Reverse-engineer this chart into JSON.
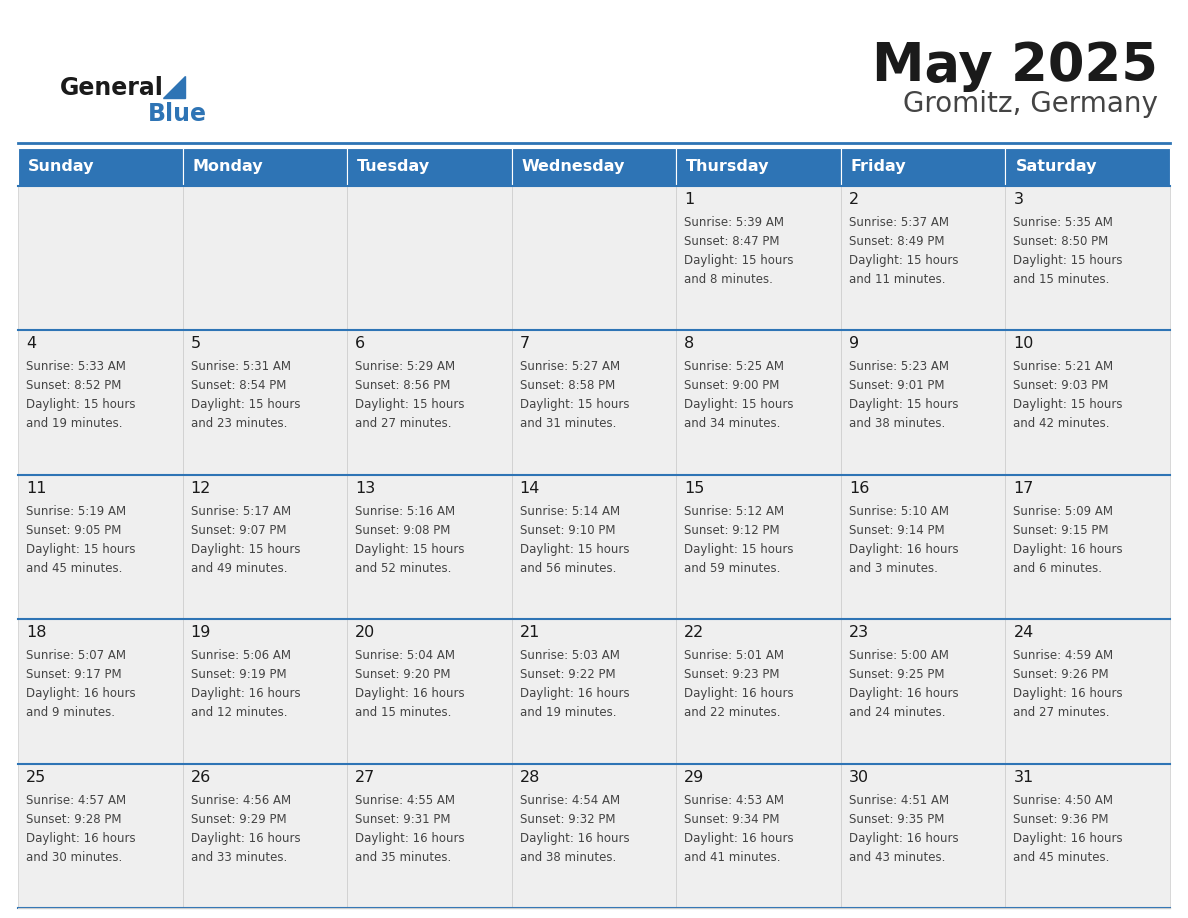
{
  "title": "May 2025",
  "subtitle": "Gromitz, Germany",
  "header_bg": "#2E74B5",
  "header_text_color": "#FFFFFF",
  "cell_bg": "#EFEFEF",
  "cell_bg_alt": "#FFFFFF",
  "day_names": [
    "Sunday",
    "Monday",
    "Tuesday",
    "Wednesday",
    "Thursday",
    "Friday",
    "Saturday"
  ],
  "title_color": "#1a1a1a",
  "subtitle_color": "#444444",
  "line_color": "#2E74B5",
  "day_number_color": "#1a1a1a",
  "cell_text_color": "#444444",
  "days": [
    {
      "col": 0,
      "row": 0,
      "num": "",
      "sunrise": "",
      "sunset": "",
      "daylight": ""
    },
    {
      "col": 1,
      "row": 0,
      "num": "",
      "sunrise": "",
      "sunset": "",
      "daylight": ""
    },
    {
      "col": 2,
      "row": 0,
      "num": "",
      "sunrise": "",
      "sunset": "",
      "daylight": ""
    },
    {
      "col": 3,
      "row": 0,
      "num": "",
      "sunrise": "",
      "sunset": "",
      "daylight": ""
    },
    {
      "col": 4,
      "row": 0,
      "num": "1",
      "sunrise": "5:39 AM",
      "sunset": "8:47 PM",
      "daylight": "15 hours\nand 8 minutes."
    },
    {
      "col": 5,
      "row": 0,
      "num": "2",
      "sunrise": "5:37 AM",
      "sunset": "8:49 PM",
      "daylight": "15 hours\nand 11 minutes."
    },
    {
      "col": 6,
      "row": 0,
      "num": "3",
      "sunrise": "5:35 AM",
      "sunset": "8:50 PM",
      "daylight": "15 hours\nand 15 minutes."
    },
    {
      "col": 0,
      "row": 1,
      "num": "4",
      "sunrise": "5:33 AM",
      "sunset": "8:52 PM",
      "daylight": "15 hours\nand 19 minutes."
    },
    {
      "col": 1,
      "row": 1,
      "num": "5",
      "sunrise": "5:31 AM",
      "sunset": "8:54 PM",
      "daylight": "15 hours\nand 23 minutes."
    },
    {
      "col": 2,
      "row": 1,
      "num": "6",
      "sunrise": "5:29 AM",
      "sunset": "8:56 PM",
      "daylight": "15 hours\nand 27 minutes."
    },
    {
      "col": 3,
      "row": 1,
      "num": "7",
      "sunrise": "5:27 AM",
      "sunset": "8:58 PM",
      "daylight": "15 hours\nand 31 minutes."
    },
    {
      "col": 4,
      "row": 1,
      "num": "8",
      "sunrise": "5:25 AM",
      "sunset": "9:00 PM",
      "daylight": "15 hours\nand 34 minutes."
    },
    {
      "col": 5,
      "row": 1,
      "num": "9",
      "sunrise": "5:23 AM",
      "sunset": "9:01 PM",
      "daylight": "15 hours\nand 38 minutes."
    },
    {
      "col": 6,
      "row": 1,
      "num": "10",
      "sunrise": "5:21 AM",
      "sunset": "9:03 PM",
      "daylight": "15 hours\nand 42 minutes."
    },
    {
      "col": 0,
      "row": 2,
      "num": "11",
      "sunrise": "5:19 AM",
      "sunset": "9:05 PM",
      "daylight": "15 hours\nand 45 minutes."
    },
    {
      "col": 1,
      "row": 2,
      "num": "12",
      "sunrise": "5:17 AM",
      "sunset": "9:07 PM",
      "daylight": "15 hours\nand 49 minutes."
    },
    {
      "col": 2,
      "row": 2,
      "num": "13",
      "sunrise": "5:16 AM",
      "sunset": "9:08 PM",
      "daylight": "15 hours\nand 52 minutes."
    },
    {
      "col": 3,
      "row": 2,
      "num": "14",
      "sunrise": "5:14 AM",
      "sunset": "9:10 PM",
      "daylight": "15 hours\nand 56 minutes."
    },
    {
      "col": 4,
      "row": 2,
      "num": "15",
      "sunrise": "5:12 AM",
      "sunset": "9:12 PM",
      "daylight": "15 hours\nand 59 minutes."
    },
    {
      "col": 5,
      "row": 2,
      "num": "16",
      "sunrise": "5:10 AM",
      "sunset": "9:14 PM",
      "daylight": "16 hours\nand 3 minutes."
    },
    {
      "col": 6,
      "row": 2,
      "num": "17",
      "sunrise": "5:09 AM",
      "sunset": "9:15 PM",
      "daylight": "16 hours\nand 6 minutes."
    },
    {
      "col": 0,
      "row": 3,
      "num": "18",
      "sunrise": "5:07 AM",
      "sunset": "9:17 PM",
      "daylight": "16 hours\nand 9 minutes."
    },
    {
      "col": 1,
      "row": 3,
      "num": "19",
      "sunrise": "5:06 AM",
      "sunset": "9:19 PM",
      "daylight": "16 hours\nand 12 minutes."
    },
    {
      "col": 2,
      "row": 3,
      "num": "20",
      "sunrise": "5:04 AM",
      "sunset": "9:20 PM",
      "daylight": "16 hours\nand 15 minutes."
    },
    {
      "col": 3,
      "row": 3,
      "num": "21",
      "sunrise": "5:03 AM",
      "sunset": "9:22 PM",
      "daylight": "16 hours\nand 19 minutes."
    },
    {
      "col": 4,
      "row": 3,
      "num": "22",
      "sunrise": "5:01 AM",
      "sunset": "9:23 PM",
      "daylight": "16 hours\nand 22 minutes."
    },
    {
      "col": 5,
      "row": 3,
      "num": "23",
      "sunrise": "5:00 AM",
      "sunset": "9:25 PM",
      "daylight": "16 hours\nand 24 minutes."
    },
    {
      "col": 6,
      "row": 3,
      "num": "24",
      "sunrise": "4:59 AM",
      "sunset": "9:26 PM",
      "daylight": "16 hours\nand 27 minutes."
    },
    {
      "col": 0,
      "row": 4,
      "num": "25",
      "sunrise": "4:57 AM",
      "sunset": "9:28 PM",
      "daylight": "16 hours\nand 30 minutes."
    },
    {
      "col": 1,
      "row": 4,
      "num": "26",
      "sunrise": "4:56 AM",
      "sunset": "9:29 PM",
      "daylight": "16 hours\nand 33 minutes."
    },
    {
      "col": 2,
      "row": 4,
      "num": "27",
      "sunrise": "4:55 AM",
      "sunset": "9:31 PM",
      "daylight": "16 hours\nand 35 minutes."
    },
    {
      "col": 3,
      "row": 4,
      "num": "28",
      "sunrise": "4:54 AM",
      "sunset": "9:32 PM",
      "daylight": "16 hours\nand 38 minutes."
    },
    {
      "col": 4,
      "row": 4,
      "num": "29",
      "sunrise": "4:53 AM",
      "sunset": "9:34 PM",
      "daylight": "16 hours\nand 41 minutes."
    },
    {
      "col": 5,
      "row": 4,
      "num": "30",
      "sunrise": "4:51 AM",
      "sunset": "9:35 PM",
      "daylight": "16 hours\nand 43 minutes."
    },
    {
      "col": 6,
      "row": 4,
      "num": "31",
      "sunrise": "4:50 AM",
      "sunset": "9:36 PM",
      "daylight": "16 hours\nand 45 minutes."
    }
  ]
}
